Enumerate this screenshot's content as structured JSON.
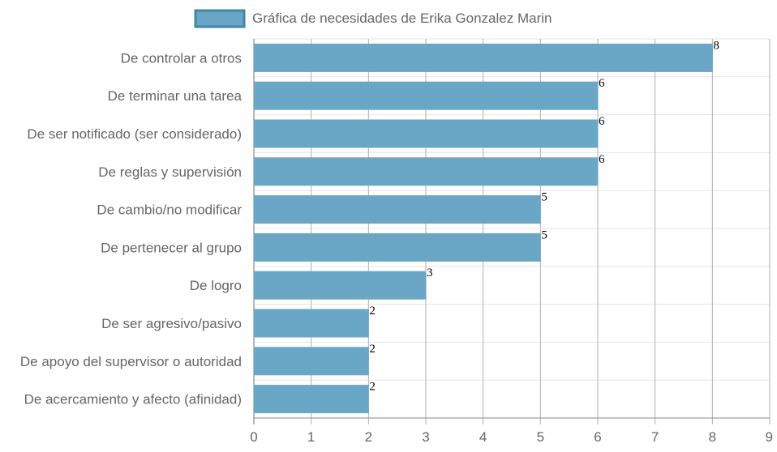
{
  "chart_data": {
    "type": "bar",
    "orientation": "horizontal",
    "title": "",
    "xlabel": "",
    "ylabel": "",
    "xlim": [
      0,
      9
    ],
    "x_ticks": [
      "0",
      "1",
      "2",
      "3",
      "4",
      "5",
      "6",
      "7",
      "8",
      "9"
    ],
    "grid": true,
    "legend": {
      "position": "top",
      "entries": [
        "Gráfica de necesidades de Erika Gonzalez Marin"
      ]
    },
    "categories": [
      "De controlar a otros",
      "De terminar una tarea",
      "De ser notificado (ser considerado)",
      "De reglas y supervisión",
      "De cambio/no modificar",
      "De pertenecer al grupo",
      "De logro",
      "De ser agresivo/pasivo",
      "De apoyo del supervisor o autoridad",
      "De acercamiento y afecto (afinidad)"
    ],
    "series": [
      {
        "name": "Gráfica de necesidades de Erika Gonzalez Marin",
        "values": [
          8,
          6,
          6,
          6,
          5,
          5,
          3,
          2,
          2,
          2
        ],
        "color": "#6aa6c5",
        "border_color": "#3f87ad"
      }
    ],
    "data_labels": [
      "8",
      "6",
      "6",
      "6",
      "5",
      "5",
      "3",
      "2",
      "2",
      "2"
    ]
  }
}
